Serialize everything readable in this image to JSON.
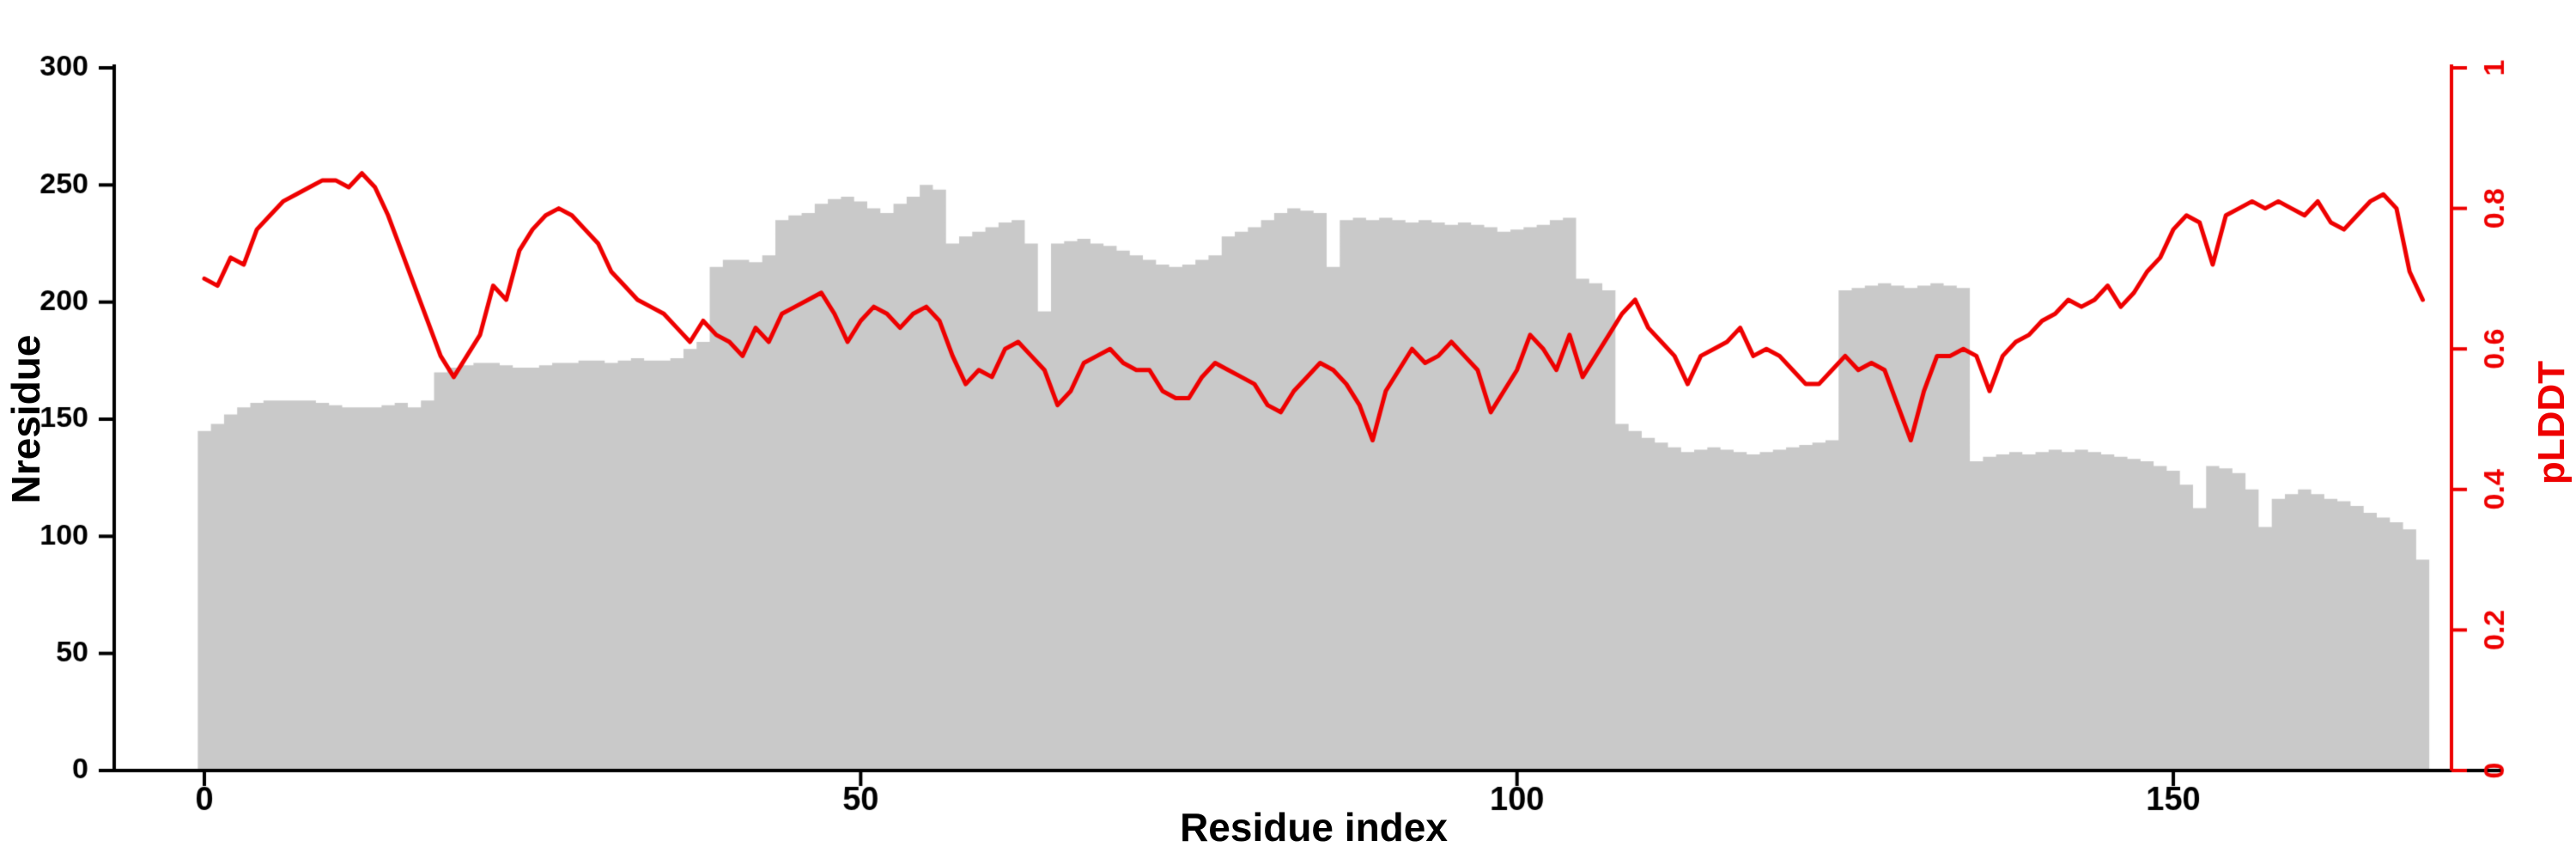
{
  "chart_data": {
    "type": "bar",
    "title": "",
    "xlabel": "Residue index",
    "ylabel_left": "Nresidue",
    "ylabel_right": "pLDDT",
    "x_start": 0,
    "x_step": 1,
    "xlim": [
      0,
      170
    ],
    "ylim_left": [
      0,
      300
    ],
    "ylim_right": [
      0,
      1
    ],
    "xticks": [
      0,
      50,
      100,
      150
    ],
    "xtick_labels": [
      "0",
      "50",
      "100",
      "150"
    ],
    "yticks_left": [
      0,
      50,
      100,
      150,
      200,
      250,
      300
    ],
    "ytick_labels_left": [
      "0",
      "50",
      "100",
      "150",
      "200",
      "250",
      "300"
    ],
    "yticks_right": [
      0,
      0.2,
      0.4,
      0.6,
      0.8,
      1
    ],
    "ytick_labels_right": [
      "0",
      "0.2",
      "0.4",
      "0.6",
      "0.8",
      "1"
    ],
    "grid": false,
    "legend": "none",
    "bar_color": "#c9c9c9",
    "line_color": "#ee0000",
    "axis_color": "#000000",
    "series": [
      {
        "name": "Nresidue",
        "render": "bar",
        "axis": "left",
        "color": "#c9c9c9",
        "values": [
          145,
          148,
          152,
          155,
          157,
          158,
          158,
          158,
          158,
          157,
          156,
          155,
          155,
          155,
          156,
          157,
          155,
          158,
          170,
          172,
          173,
          174,
          174,
          173,
          172,
          172,
          173,
          174,
          174,
          175,
          175,
          174,
          175,
          176,
          175,
          175,
          176,
          180,
          183,
          215,
          218,
          218,
          217,
          220,
          235,
          237,
          238,
          242,
          244,
          245,
          243,
          240,
          238,
          242,
          245,
          250,
          248,
          225,
          228,
          230,
          232,
          234,
          235,
          225,
          196,
          225,
          226,
          227,
          225,
          224,
          222,
          220,
          218,
          216,
          215,
          216,
          218,
          220,
          228,
          230,
          232,
          235,
          238,
          240,
          239,
          238,
          215,
          235,
          236,
          235,
          236,
          235,
          234,
          235,
          234,
          233,
          234,
          233,
          232,
          230,
          231,
          232,
          233,
          235,
          236,
          210,
          208,
          205,
          148,
          145,
          142,
          140,
          138,
          136,
          137,
          138,
          137,
          136,
          135,
          136,
          137,
          138,
          139,
          140,
          141,
          205,
          206,
          207,
          208,
          207,
          206,
          207,
          208,
          207,
          206,
          132,
          134,
          135,
          136,
          135,
          136,
          137,
          136,
          137,
          136,
          135,
          134,
          133,
          132,
          130,
          128,
          122,
          112,
          130,
          129,
          127,
          120,
          104,
          116,
          118,
          120,
          118,
          116,
          115,
          113,
          110,
          108,
          106,
          103,
          90
        ]
      },
      {
        "name": "pLDDT",
        "render": "line",
        "axis": "right",
        "color": "#ee0000",
        "values": [
          0.7,
          0.69,
          0.73,
          0.72,
          0.77,
          0.79,
          0.81,
          0.82,
          0.83,
          0.84,
          0.84,
          0.83,
          0.85,
          0.83,
          0.79,
          0.74,
          0.69,
          0.64,
          0.59,
          0.56,
          0.59,
          0.62,
          0.69,
          0.67,
          0.74,
          0.77,
          0.79,
          0.8,
          0.79,
          0.77,
          0.75,
          0.71,
          0.69,
          0.67,
          0.66,
          0.65,
          0.63,
          0.61,
          0.64,
          0.62,
          0.61,
          0.59,
          0.63,
          0.61,
          0.65,
          0.66,
          0.67,
          0.68,
          0.65,
          0.61,
          0.64,
          0.66,
          0.65,
          0.63,
          0.65,
          0.66,
          0.64,
          0.59,
          0.55,
          0.57,
          0.56,
          0.6,
          0.61,
          0.59,
          0.57,
          0.52,
          0.54,
          0.58,
          0.59,
          0.6,
          0.58,
          0.57,
          0.57,
          0.54,
          0.53,
          0.53,
          0.56,
          0.58,
          0.57,
          0.56,
          0.55,
          0.52,
          0.51,
          0.54,
          0.56,
          0.58,
          0.57,
          0.55,
          0.52,
          0.47,
          0.54,
          0.57,
          0.6,
          0.58,
          0.59,
          0.61,
          0.59,
          0.57,
          0.51,
          0.54,
          0.57,
          0.62,
          0.6,
          0.57,
          0.62,
          0.56,
          0.59,
          0.62,
          0.65,
          0.67,
          0.63,
          0.61,
          0.59,
          0.55,
          0.59,
          0.6,
          0.61,
          0.63,
          0.59,
          0.6,
          0.59,
          0.57,
          0.55,
          0.55,
          0.57,
          0.59,
          0.57,
          0.58,
          0.57,
          0.52,
          0.47,
          0.54,
          0.59,
          0.59,
          0.6,
          0.59,
          0.54,
          0.59,
          0.61,
          0.62,
          0.64,
          0.65,
          0.67,
          0.66,
          0.67,
          0.69,
          0.66,
          0.68,
          0.71,
          0.73,
          0.77,
          0.79,
          0.78,
          0.72,
          0.79,
          0.8,
          0.81,
          0.8,
          0.81,
          0.8,
          0.79,
          0.81,
          0.78,
          0.77,
          0.79,
          0.81,
          0.82,
          0.8,
          0.71,
          0.67
        ]
      }
    ]
  }
}
